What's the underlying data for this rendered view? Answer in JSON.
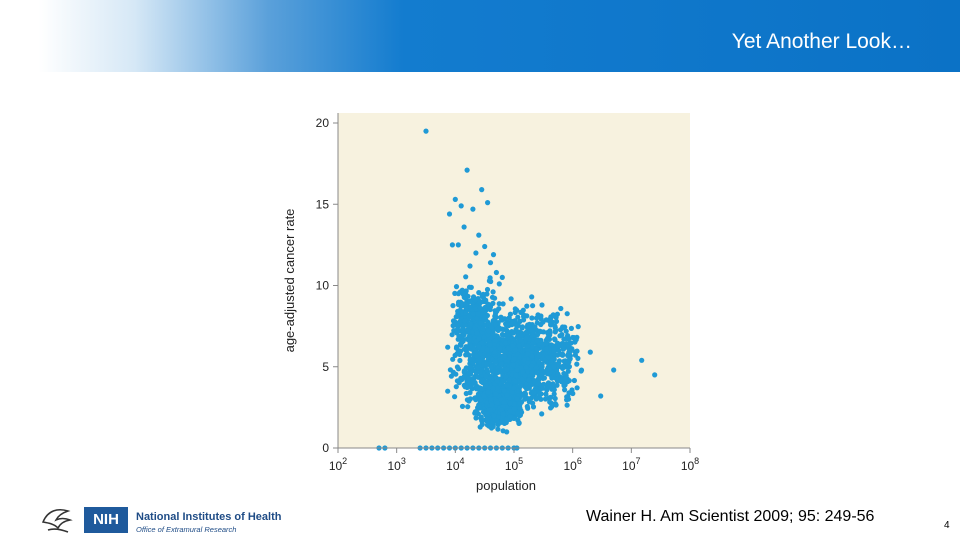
{
  "header": {
    "title": "Yet Another Look…"
  },
  "chart_data": {
    "type": "scatter",
    "xlabel": "population",
    "ylabel": "age-adjusted cancer rate",
    "xscale": "log",
    "xlim": [
      100,
      100000000
    ],
    "ylim": [
      0,
      20
    ],
    "x_ticks": [
      {
        "base": "10",
        "exp": "2",
        "value": 100
      },
      {
        "base": "10",
        "exp": "3",
        "value": 1000
      },
      {
        "base": "10",
        "exp": "4",
        "value": 10000
      },
      {
        "base": "10",
        "exp": "5",
        "value": 100000
      },
      {
        "base": "10",
        "exp": "6",
        "value": 1000000
      },
      {
        "base": "10",
        "exp": "7",
        "value": 10000000
      },
      {
        "base": "10",
        "exp": "8",
        "value": 100000000
      }
    ],
    "y_ticks": [
      "0",
      "5",
      "10",
      "15",
      "20"
    ],
    "points": [
      [
        3162,
        19.5
      ],
      [
        15849,
        17.1
      ],
      [
        28184,
        15.9
      ],
      [
        35481,
        15.1
      ],
      [
        10000,
        15.3
      ],
      [
        12589,
        14.9
      ],
      [
        7943,
        14.4
      ],
      [
        19953,
        14.7
      ],
      [
        14125,
        13.6
      ],
      [
        25119,
        13.1
      ],
      [
        31623,
        12.4
      ],
      [
        44668,
        11.9
      ],
      [
        8913,
        12.5
      ],
      [
        11220,
        12.5
      ],
      [
        22387,
        12.0
      ],
      [
        39811,
        11.4
      ],
      [
        50119,
        10.8
      ],
      [
        63096,
        10.5
      ],
      [
        17783,
        11.2
      ],
      [
        56234,
        10.1
      ],
      [
        2512,
        0
      ],
      [
        3162,
        0
      ],
      [
        3981,
        0
      ],
      [
        5012,
        0
      ],
      [
        6310,
        0
      ],
      [
        7943,
        0
      ],
      [
        10000,
        0
      ],
      [
        12589,
        0
      ],
      [
        15849,
        0
      ],
      [
        19953,
        0
      ],
      [
        25119,
        0
      ],
      [
        31623,
        0
      ],
      [
        39811,
        0
      ],
      [
        50119,
        0
      ],
      [
        63096,
        0
      ],
      [
        79433,
        0
      ],
      [
        100000,
        0
      ],
      [
        112202,
        0
      ],
      [
        500,
        0
      ],
      [
        630,
        0
      ],
      [
        15000000,
        5.4
      ],
      [
        25000000,
        4.5
      ],
      [
        5000000,
        4.8
      ],
      [
        3000000,
        3.2
      ],
      [
        2000000,
        5.9
      ],
      [
        1000000,
        6.8
      ],
      [
        700000,
        7.4
      ],
      [
        500000,
        8.1
      ],
      [
        300000,
        8.8
      ],
      [
        200000,
        9.3
      ]
    ],
    "cluster": [
      {
        "x_from": 7000,
        "x_to": 1500000,
        "y_from": 1.5,
        "y_to": 9.5,
        "n": 1400
      },
      {
        "x_from": 20000,
        "x_to": 150000,
        "y_from": 0.8,
        "y_to": 4.5,
        "n": 500
      },
      {
        "x_from": 8000,
        "x_to": 60000,
        "y_from": 5,
        "y_to": 11,
        "n": 250
      }
    ],
    "point_color": "#1f9ad6",
    "plot_background": "#f7f2df"
  },
  "footer": {
    "citation": "Wainer H.  Am Scientist 2009; 95: 249-56",
    "page_number": "4",
    "logo_nih": "NIH",
    "logo_name": "National Institutes of Health",
    "logo_sub": "Office of Extramural Research"
  }
}
